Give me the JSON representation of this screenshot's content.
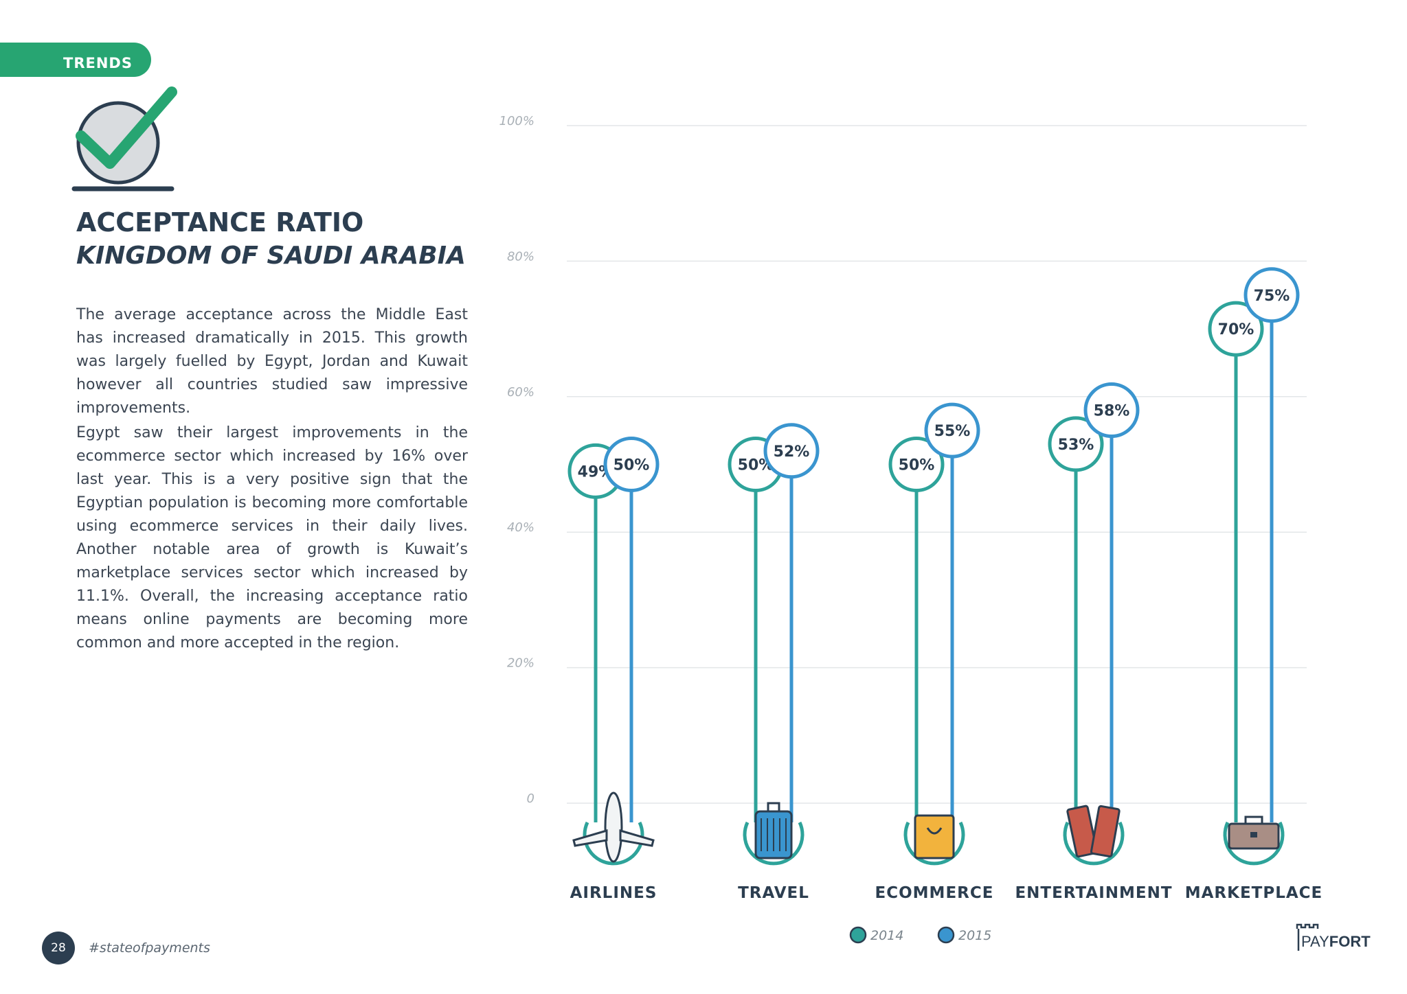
{
  "header": {
    "section_label": "TRENDS"
  },
  "hero": {
    "icon": "checkmark-icon"
  },
  "title": "ACCEPTANCE RATIO",
  "subtitle": "KINGDOM OF SAUDI ARABIA",
  "paragraphs": [
    "The average acceptance across the Middle East has increased dramatically in 2015. This growth was largely fuelled by Egypt, Jordan and Kuwait however all countries studied saw impressive improvements.",
    "Egypt saw their largest improvements in the ecommerce sector which increased by 16% over last year. This is a very positive sign that the Egyptian population is becoming more comfortable using ecommerce services in their daily lives. Another notable area of growth is Kuwait’s marketplace services sector which increased by 11.1%. Overall, the increasing acceptance ratio means online payments are becoming more common and more accepted in the region."
  ],
  "footer": {
    "page_number": "28",
    "hashtag": "#stateofpayments",
    "brand": "PAYFORT"
  },
  "colors": {
    "accent": "#27a572",
    "series_2014": "#2ea39a",
    "series_2015": "#3a95cf",
    "text": "#2c3e50"
  },
  "chart_data": {
    "type": "bar",
    "categories": [
      "AIRLINES",
      "TRAVEL",
      "ECOMMERCE",
      "ENTERTAINMENT",
      "MARKETPLACE"
    ],
    "category_icons": [
      "airplane-icon",
      "suitcase-icon",
      "shopping-bag-icon",
      "tickets-icon",
      "briefcase-icon"
    ],
    "series": [
      {
        "name": "2014",
        "values": [
          49,
          50,
          50,
          53,
          70
        ],
        "labels": [
          "49%",
          "50%",
          "50%",
          "53%",
          "70%"
        ]
      },
      {
        "name": "2015",
        "values": [
          50,
          52,
          55,
          58,
          75
        ],
        "labels": [
          "50%",
          "52%",
          "55%",
          "58%",
          "75%"
        ]
      }
    ],
    "yticks": [
      "0",
      "20%",
      "40%",
      "60%",
      "80%",
      "100%"
    ],
    "ylim": [
      0,
      100
    ],
    "legend_position": "bottom-center",
    "grid": true
  }
}
